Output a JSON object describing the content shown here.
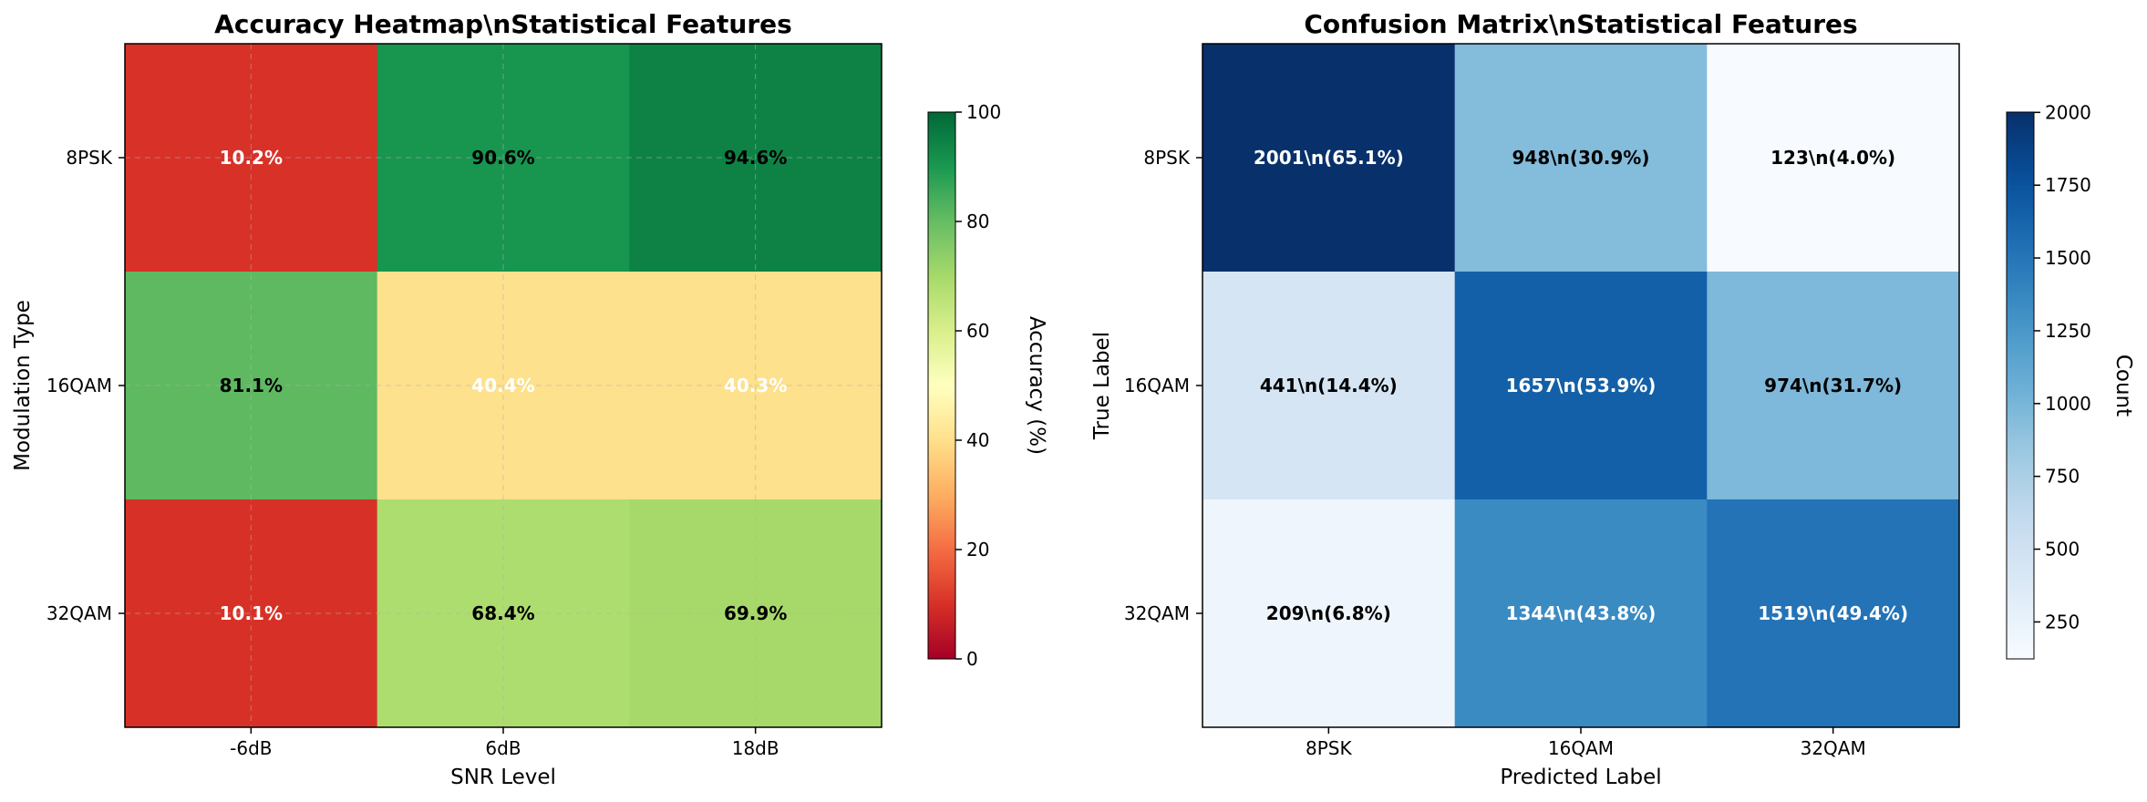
{
  "chart_data": [
    {
      "type": "heatmap",
      "title": "Accuracy Heatmap\\nStatistical Features",
      "xlabel": "SNR Level",
      "ylabel": "Modulation Type",
      "x_categories": [
        "-6dB",
        "6dB",
        "18dB"
      ],
      "y_categories": [
        "8PSK",
        "16QAM",
        "32QAM"
      ],
      "values": [
        [
          10.2,
          90.6,
          94.6
        ],
        [
          81.1,
          40.4,
          40.3
        ],
        [
          10.1,
          68.4,
          69.9
        ]
      ],
      "cell_labels": [
        [
          "10.2%",
          "90.6%",
          "94.6%"
        ],
        [
          "81.1%",
          "40.4%",
          "40.3%"
        ],
        [
          "10.1%",
          "68.4%",
          "69.9%"
        ]
      ],
      "colormap": "RdYlGn",
      "vmin": 0,
      "vmax": 100,
      "grid": true,
      "colorbar": {
        "label": "Accuracy (%)",
        "ticks": [
          0,
          20,
          40,
          60,
          80,
          100
        ]
      }
    },
    {
      "type": "heatmap",
      "title": "Confusion Matrix\\nStatistical Features",
      "xlabel": "Predicted Label",
      "ylabel": "True Label",
      "x_categories": [
        "8PSK",
        "16QAM",
        "32QAM"
      ],
      "y_categories": [
        "8PSK",
        "16QAM",
        "32QAM"
      ],
      "values": [
        [
          2001,
          948,
          123
        ],
        [
          441,
          1657,
          974
        ],
        [
          209,
          1344,
          1519
        ]
      ],
      "cell_labels": [
        [
          "2001\\n(65.1%)",
          "948\\n(30.9%)",
          "123\\n(4.0%)"
        ],
        [
          "441\\n(14.4%)",
          "1657\\n(53.9%)",
          "974\\n(31.7%)"
        ],
        [
          "209\\n(6.8%)",
          "1344\\n(43.8%)",
          "1519\\n(49.4%)"
        ]
      ],
      "colormap": "Blues",
      "vmin": 123,
      "vmax": 2001,
      "grid": false,
      "colorbar": {
        "label": "Count",
        "ticks": [
          250,
          500,
          750,
          1000,
          1250,
          1500,
          1750,
          2000
        ]
      }
    }
  ]
}
